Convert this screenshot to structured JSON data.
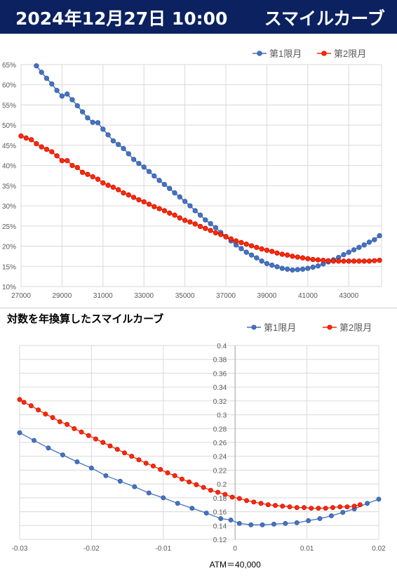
{
  "header": {
    "date_time": "2024年12月27日 10:00",
    "title": "スマイルカーブ"
  },
  "colors": {
    "header_bg": "#0b2160",
    "series1": "#4472c4",
    "series2": "#ff2a00",
    "grid": "#d9d9d9"
  },
  "chart_data": [
    {
      "type": "line",
      "title": "",
      "xlim": [
        27000,
        44600
      ],
      "ylim": [
        10,
        65
      ],
      "x_ticks": [
        27000,
        29000,
        31000,
        33000,
        35000,
        37000,
        39000,
        41000,
        43000
      ],
      "y_ticks": [
        "10%",
        "15%",
        "20%",
        "25%",
        "30%",
        "35%",
        "40%",
        "45%",
        "50%",
        "55%",
        "60%",
        "65%"
      ],
      "y_tick_values": [
        10,
        15,
        20,
        25,
        30,
        35,
        40,
        45,
        50,
        55,
        60,
        65
      ],
      "legend_position": "top-right",
      "series": [
        {
          "name": "第1限月",
          "x": [
            27750,
            28000,
            28250,
            28500,
            28750,
            29000,
            29250,
            29500,
            29750,
            30000,
            30250,
            30500,
            30750,
            31000,
            31250,
            31500,
            31750,
            32000,
            32250,
            32500,
            32750,
            33000,
            33250,
            33500,
            33750,
            34000,
            34250,
            34500,
            34750,
            35000,
            35250,
            35500,
            35750,
            36000,
            36250,
            36500,
            36750,
            37000,
            37250,
            37500,
            37750,
            38000,
            38250,
            38500,
            38750,
            39000,
            39250,
            39500,
            39750,
            40000,
            40250,
            40500,
            40750,
            41000,
            41250,
            41500,
            41750,
            42000,
            42250,
            42500,
            42750,
            43000,
            43250,
            43500,
            43750,
            44000,
            44250,
            44500
          ],
          "values": [
            64.7,
            63.1,
            61.6,
            60.2,
            58.6,
            57.2,
            57.7,
            56.3,
            54.8,
            53.3,
            51.8,
            50.7,
            50.6,
            49.0,
            47.6,
            46.1,
            45.2,
            44.2,
            42.9,
            41.5,
            40.5,
            39.6,
            38.5,
            37.4,
            36.3,
            35.3,
            34.3,
            33.2,
            32.2,
            31.1,
            30.0,
            28.8,
            27.7,
            26.5,
            25.6,
            24.6,
            23.4,
            22.4,
            21.3,
            20.3,
            19.4,
            18.5,
            17.8,
            17.1,
            16.3,
            15.7,
            15.3,
            14.9,
            14.5,
            14.3,
            14.1,
            14.2,
            14.3,
            14.5,
            14.8,
            15.1,
            15.6,
            16.1,
            16.6,
            17.2,
            17.9,
            18.5,
            19.1,
            19.7,
            20.3,
            21.0,
            21.6,
            22.6
          ]
        },
        {
          "name": "第2限月",
          "x": [
            27000,
            27250,
            27500,
            27750,
            28000,
            28250,
            28500,
            28750,
            29000,
            29250,
            29500,
            29750,
            30000,
            30250,
            30500,
            30750,
            31000,
            31250,
            31500,
            31750,
            32000,
            32250,
            32500,
            32750,
            33000,
            33250,
            33500,
            33750,
            34000,
            34250,
            34500,
            34750,
            35000,
            35250,
            35500,
            35750,
            36000,
            36250,
            36500,
            36750,
            37000,
            37250,
            37500,
            37750,
            38000,
            38250,
            38500,
            38750,
            39000,
            39250,
            39500,
            39750,
            40000,
            40250,
            40500,
            40750,
            41000,
            41250,
            41500,
            41750,
            42000,
            42250,
            42500,
            42750,
            43000,
            43250,
            43500,
            43750,
            44000,
            44250,
            44500
          ],
          "values": [
            47.3,
            46.8,
            46.4,
            45.4,
            44.6,
            44.0,
            43.4,
            42.4,
            41.2,
            41.2,
            40.0,
            39.5,
            38.3,
            37.8,
            37.2,
            36.6,
            35.7,
            35.1,
            34.6,
            34.0,
            33.2,
            32.7,
            32.1,
            31.5,
            31.0,
            30.4,
            29.8,
            29.3,
            28.8,
            28.2,
            27.7,
            27.0,
            26.4,
            26.0,
            25.5,
            24.9,
            24.4,
            23.9,
            23.3,
            22.9,
            22.3,
            21.8,
            21.3,
            20.9,
            20.5,
            20.1,
            19.7,
            19.3,
            19.0,
            18.7,
            18.3,
            18.0,
            17.8,
            17.5,
            17.3,
            17.1,
            16.9,
            16.7,
            16.6,
            16.5,
            16.4,
            16.3,
            16.3,
            16.3,
            16.3,
            16.3,
            16.3,
            16.3,
            16.3,
            16.4,
            16.5
          ]
        }
      ]
    },
    {
      "type": "line",
      "title": "対数を年換算したスマイルカーブ",
      "xlabel": "ATM＝40,000",
      "xlim": [
        -0.03,
        0.02
      ],
      "ylim": [
        0.12,
        0.4
      ],
      "x_ticks": [
        "-0.03",
        "-0.02",
        "-0.01",
        "0",
        "0.01",
        "0.02"
      ],
      "x_tick_values": [
        -0.03,
        -0.02,
        -0.01,
        0,
        0.01,
        0.02
      ],
      "y_ticks": [
        "0.12",
        "0.14",
        "0.16",
        "0.18",
        "0.2",
        "0.22",
        "0.24",
        "0.26",
        "0.28",
        "0.3",
        "0.32",
        "0.34",
        "0.36",
        "0.38",
        "0.4"
      ],
      "y_tick_values": [
        0.12,
        0.14,
        0.16,
        0.18,
        0.2,
        0.22,
        0.24,
        0.26,
        0.28,
        0.3,
        0.32,
        0.34,
        0.36,
        0.38,
        0.4
      ],
      "legend_position": "top-right",
      "series": [
        {
          "name": "第1限月",
          "x": [
            -0.03,
            -0.028,
            -0.026,
            -0.024,
            -0.022,
            -0.02,
            -0.018,
            -0.016,
            -0.014,
            -0.012,
            -0.01,
            -0.008,
            -0.006,
            -0.004,
            -0.002,
            -0.0006,
            0.0006,
            0.0022,
            0.0038,
            0.0054,
            0.007,
            0.0086,
            0.0102,
            0.0118,
            0.0134,
            0.015,
            0.0166,
            0.0184,
            0.02
          ],
          "values": [
            0.274,
            0.263,
            0.252,
            0.242,
            0.232,
            0.223,
            0.212,
            0.204,
            0.196,
            0.187,
            0.18,
            0.172,
            0.165,
            0.158,
            0.15,
            0.148,
            0.143,
            0.141,
            0.141,
            0.142,
            0.143,
            0.144,
            0.147,
            0.15,
            0.154,
            0.159,
            0.164,
            0.172,
            0.178
          ]
        },
        {
          "name": "第2限月",
          "x": [
            -0.03,
            -0.0294,
            -0.0284,
            -0.0274,
            -0.0264,
            -0.0254,
            -0.0244,
            -0.0234,
            -0.0224,
            -0.0214,
            -0.0204,
            -0.0194,
            -0.0184,
            -0.0174,
            -0.0164,
            -0.0154,
            -0.0144,
            -0.0134,
            -0.0124,
            -0.0114,
            -0.0104,
            -0.0094,
            -0.0084,
            -0.0074,
            -0.0064,
            -0.0054,
            -0.0044,
            -0.0034,
            -0.0024,
            -0.0014,
            -0.0004,
            0.0006,
            0.0016,
            0.0026,
            0.0036,
            0.0046,
            0.0056,
            0.0066,
            0.0076,
            0.0086,
            0.0096,
            0.0106,
            0.0116,
            0.0126,
            0.0136,
            0.0146,
            0.0156,
            0.0166,
            0.0174
          ],
          "values": [
            0.322,
            0.318,
            0.313,
            0.307,
            0.301,
            0.296,
            0.29,
            0.286,
            0.28,
            0.275,
            0.27,
            0.265,
            0.26,
            0.255,
            0.25,
            0.245,
            0.24,
            0.235,
            0.23,
            0.226,
            0.221,
            0.216,
            0.212,
            0.207,
            0.203,
            0.199,
            0.195,
            0.191,
            0.188,
            0.185,
            0.181,
            0.179,
            0.176,
            0.174,
            0.172,
            0.17,
            0.169,
            0.168,
            0.167,
            0.166,
            0.166,
            0.165,
            0.165,
            0.165,
            0.166,
            0.167,
            0.167,
            0.168,
            0.17
          ]
        }
      ]
    }
  ]
}
